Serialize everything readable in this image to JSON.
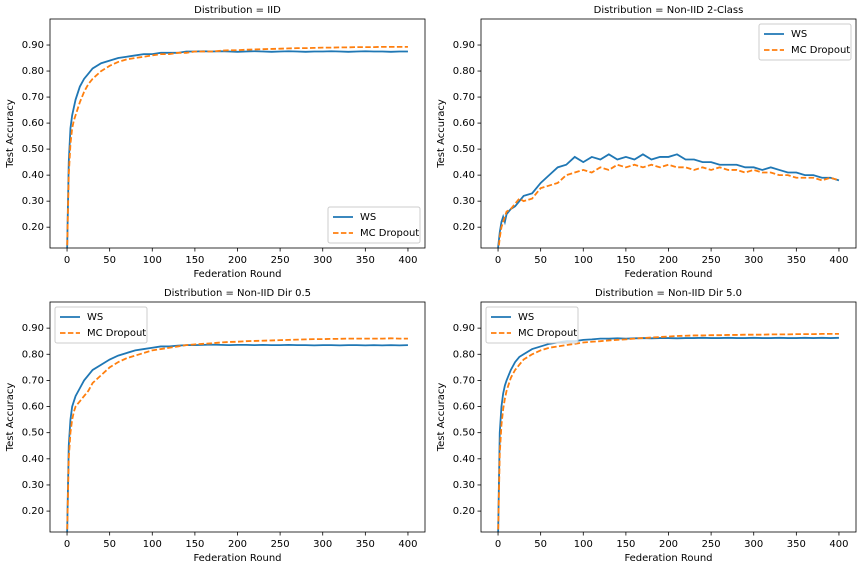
{
  "chart_data": [
    {
      "type": "line",
      "title": "Distribution = IID",
      "xlabel": "Federation Round",
      "ylabel": "Test Accuracy",
      "x": [
        0,
        2,
        4,
        6,
        8,
        10,
        15,
        20,
        25,
        30,
        40,
        50,
        60,
        70,
        80,
        90,
        100,
        110,
        120,
        130,
        140,
        150,
        160,
        170,
        180,
        190,
        200,
        210,
        220,
        230,
        240,
        250,
        260,
        270,
        280,
        290,
        300,
        310,
        320,
        330,
        340,
        350,
        360,
        370,
        380,
        390,
        400
      ],
      "series": [
        {
          "name": "WS",
          "color": "#1f77b4",
          "linestyle": "solid",
          "values": [
            0.1,
            0.45,
            0.58,
            0.63,
            0.66,
            0.69,
            0.74,
            0.77,
            0.79,
            0.81,
            0.83,
            0.84,
            0.85,
            0.855,
            0.86,
            0.865,
            0.865,
            0.87,
            0.87,
            0.87,
            0.875,
            0.875,
            0.876,
            0.875,
            0.876,
            0.875,
            0.874,
            0.875,
            0.876,
            0.875,
            0.874,
            0.875,
            0.876,
            0.875,
            0.874,
            0.875,
            0.875,
            0.876,
            0.875,
            0.874,
            0.875,
            0.876,
            0.875,
            0.875,
            0.874,
            0.875,
            0.875
          ]
        },
        {
          "name": "MC Dropout",
          "color": "#ff7f0e",
          "linestyle": "dashed",
          "values": [
            0.1,
            0.4,
            0.52,
            0.58,
            0.61,
            0.63,
            0.68,
            0.72,
            0.75,
            0.77,
            0.8,
            0.82,
            0.835,
            0.845,
            0.85,
            0.855,
            0.86,
            0.865,
            0.865,
            0.87,
            0.87,
            0.875,
            0.875,
            0.875,
            0.878,
            0.88,
            0.88,
            0.882,
            0.883,
            0.884,
            0.885,
            0.886,
            0.887,
            0.888,
            0.888,
            0.889,
            0.89,
            0.89,
            0.891,
            0.891,
            0.892,
            0.892,
            0.892,
            0.893,
            0.893,
            0.893,
            0.893
          ]
        }
      ],
      "xlim": [
        -20,
        420
      ],
      "xticks": [
        0,
        50,
        100,
        150,
        200,
        250,
        300,
        350,
        400
      ],
      "ylim": [
        0.12,
        1.0
      ],
      "yticks": [
        {
          "value": 0.2,
          "label": "0.20"
        },
        {
          "value": 0.3,
          "label": "0.30"
        },
        {
          "value": 0.4,
          "label": "0.40"
        },
        {
          "value": 0.5,
          "label": "0.50"
        },
        {
          "value": 0.6,
          "label": "0.60"
        },
        {
          "value": 0.7,
          "label": "0.70"
        },
        {
          "value": 0.8,
          "label": "0.80"
        },
        {
          "value": 0.9,
          "label": "0.90"
        }
      ],
      "legend": "lower right",
      "grid": false
    },
    {
      "type": "line",
      "title": "Distribution = Non-IID 2-Class",
      "xlabel": "Federation Round",
      "ylabel": "Test Accuracy",
      "x": [
        0,
        2,
        4,
        6,
        8,
        10,
        15,
        20,
        25,
        30,
        40,
        50,
        60,
        70,
        80,
        90,
        100,
        110,
        120,
        130,
        140,
        150,
        160,
        170,
        180,
        190,
        200,
        210,
        220,
        230,
        240,
        250,
        260,
        270,
        280,
        290,
        300,
        310,
        320,
        330,
        340,
        350,
        360,
        370,
        380,
        390,
        400
      ],
      "series": [
        {
          "name": "WS",
          "color": "#1f77b4",
          "linestyle": "solid",
          "values": [
            0.12,
            0.18,
            0.22,
            0.24,
            0.22,
            0.25,
            0.27,
            0.28,
            0.3,
            0.32,
            0.33,
            0.37,
            0.4,
            0.43,
            0.44,
            0.47,
            0.45,
            0.47,
            0.46,
            0.48,
            0.46,
            0.47,
            0.46,
            0.48,
            0.46,
            0.47,
            0.47,
            0.48,
            0.46,
            0.46,
            0.45,
            0.45,
            0.44,
            0.44,
            0.44,
            0.43,
            0.43,
            0.42,
            0.43,
            0.42,
            0.41,
            0.41,
            0.4,
            0.4,
            0.39,
            0.39,
            0.38
          ]
        },
        {
          "name": "MC Dropout",
          "color": "#ff7f0e",
          "linestyle": "dashed",
          "values": [
            0.1,
            0.16,
            0.2,
            0.22,
            0.24,
            0.26,
            0.27,
            0.29,
            0.31,
            0.3,
            0.31,
            0.35,
            0.36,
            0.37,
            0.4,
            0.41,
            0.42,
            0.41,
            0.43,
            0.42,
            0.44,
            0.43,
            0.44,
            0.43,
            0.44,
            0.43,
            0.44,
            0.43,
            0.43,
            0.42,
            0.43,
            0.42,
            0.43,
            0.42,
            0.42,
            0.41,
            0.42,
            0.41,
            0.41,
            0.4,
            0.4,
            0.39,
            0.39,
            0.39,
            0.38,
            0.39,
            0.38
          ]
        }
      ],
      "xlim": [
        -20,
        420
      ],
      "xticks": [
        0,
        50,
        100,
        150,
        200,
        250,
        300,
        350,
        400
      ],
      "ylim": [
        0.12,
        1.0
      ],
      "yticks": [
        {
          "value": 0.2,
          "label": "0.20"
        },
        {
          "value": 0.3,
          "label": "0.30"
        },
        {
          "value": 0.4,
          "label": "0.40"
        },
        {
          "value": 0.5,
          "label": "0.50"
        },
        {
          "value": 0.6,
          "label": "0.60"
        },
        {
          "value": 0.7,
          "label": "0.70"
        },
        {
          "value": 0.8,
          "label": "0.80"
        },
        {
          "value": 0.9,
          "label": "0.90"
        }
      ],
      "legend": "upper right",
      "grid": false
    },
    {
      "type": "line",
      "title": "Distribution = Non-IID Dir 0.5",
      "xlabel": "Federation Round",
      "ylabel": "Test Accuracy",
      "x": [
        0,
        2,
        4,
        6,
        8,
        10,
        15,
        20,
        25,
        30,
        40,
        50,
        60,
        70,
        80,
        90,
        100,
        110,
        120,
        130,
        140,
        150,
        160,
        170,
        180,
        190,
        200,
        210,
        220,
        230,
        240,
        250,
        260,
        270,
        280,
        290,
        300,
        310,
        320,
        330,
        340,
        350,
        360,
        370,
        380,
        390,
        400
      ],
      "series": [
        {
          "name": "WS",
          "color": "#1f77b4",
          "linestyle": "solid",
          "values": [
            0.1,
            0.45,
            0.55,
            0.6,
            0.62,
            0.64,
            0.67,
            0.7,
            0.72,
            0.74,
            0.76,
            0.78,
            0.795,
            0.805,
            0.815,
            0.82,
            0.825,
            0.83,
            0.83,
            0.833,
            0.835,
            0.835,
            0.836,
            0.837,
            0.836,
            0.835,
            0.836,
            0.836,
            0.835,
            0.836,
            0.835,
            0.835,
            0.836,
            0.835,
            0.835,
            0.834,
            0.835,
            0.835,
            0.834,
            0.835,
            0.835,
            0.834,
            0.835,
            0.834,
            0.835,
            0.834,
            0.835
          ]
        },
        {
          "name": "MC Dropout",
          "color": "#ff7f0e",
          "linestyle": "dashed",
          "values": [
            0.1,
            0.4,
            0.5,
            0.55,
            0.58,
            0.6,
            0.62,
            0.64,
            0.66,
            0.69,
            0.72,
            0.75,
            0.77,
            0.785,
            0.795,
            0.805,
            0.815,
            0.82,
            0.825,
            0.83,
            0.835,
            0.838,
            0.84,
            0.842,
            0.845,
            0.847,
            0.848,
            0.85,
            0.851,
            0.852,
            0.853,
            0.854,
            0.855,
            0.856,
            0.857,
            0.858,
            0.858,
            0.859,
            0.859,
            0.86,
            0.86,
            0.86,
            0.86,
            0.86,
            0.861,
            0.86,
            0.86
          ]
        }
      ],
      "xlim": [
        -20,
        420
      ],
      "xticks": [
        0,
        50,
        100,
        150,
        200,
        250,
        300,
        350,
        400
      ],
      "ylim": [
        0.12,
        1.0
      ],
      "yticks": [
        {
          "value": 0.2,
          "label": "0.20"
        },
        {
          "value": 0.3,
          "label": "0.30"
        },
        {
          "value": 0.4,
          "label": "0.40"
        },
        {
          "value": 0.5,
          "label": "0.50"
        },
        {
          "value": 0.6,
          "label": "0.60"
        },
        {
          "value": 0.7,
          "label": "0.70"
        },
        {
          "value": 0.8,
          "label": "0.80"
        },
        {
          "value": 0.9,
          "label": "0.90"
        }
      ],
      "legend": "upper left",
      "grid": false
    },
    {
      "type": "line",
      "title": "Distribution = Non-IID Dir 5.0",
      "xlabel": "Federation Round",
      "ylabel": "Test Accuracy",
      "x": [
        0,
        2,
        4,
        6,
        8,
        10,
        15,
        20,
        25,
        30,
        40,
        50,
        60,
        70,
        80,
        90,
        100,
        110,
        120,
        130,
        140,
        150,
        160,
        170,
        180,
        190,
        200,
        210,
        220,
        230,
        240,
        250,
        260,
        270,
        280,
        290,
        300,
        310,
        320,
        330,
        340,
        350,
        360,
        370,
        380,
        390,
        400
      ],
      "series": [
        {
          "name": "WS",
          "color": "#1f77b4",
          "linestyle": "solid",
          "values": [
            0.1,
            0.5,
            0.6,
            0.65,
            0.68,
            0.7,
            0.74,
            0.77,
            0.79,
            0.8,
            0.82,
            0.83,
            0.84,
            0.845,
            0.85,
            0.85,
            0.855,
            0.857,
            0.86,
            0.86,
            0.861,
            0.86,
            0.861,
            0.862,
            0.861,
            0.862,
            0.862,
            0.861,
            0.862,
            0.862,
            0.863,
            0.862,
            0.862,
            0.863,
            0.862,
            0.862,
            0.863,
            0.862,
            0.862,
            0.863,
            0.862,
            0.862,
            0.863,
            0.862,
            0.863,
            0.862,
            0.863
          ]
        },
        {
          "name": "MC Dropout",
          "color": "#ff7f0e",
          "linestyle": "dashed",
          "values": [
            0.1,
            0.42,
            0.53,
            0.59,
            0.63,
            0.66,
            0.71,
            0.74,
            0.76,
            0.78,
            0.8,
            0.815,
            0.825,
            0.83,
            0.835,
            0.84,
            0.845,
            0.848,
            0.85,
            0.853,
            0.855,
            0.857,
            0.86,
            0.862,
            0.864,
            0.866,
            0.868,
            0.87,
            0.871,
            0.872,
            0.872,
            0.873,
            0.873,
            0.874,
            0.874,
            0.875,
            0.875,
            0.875,
            0.876,
            0.876,
            0.876,
            0.877,
            0.877,
            0.877,
            0.878,
            0.878,
            0.878
          ]
        }
      ],
      "xlim": [
        -20,
        420
      ],
      "xticks": [
        0,
        50,
        100,
        150,
        200,
        250,
        300,
        350,
        400
      ],
      "ylim": [
        0.12,
        1.0
      ],
      "yticks": [
        {
          "value": 0.2,
          "label": "0.20"
        },
        {
          "value": 0.3,
          "label": "0.30"
        },
        {
          "value": 0.4,
          "label": "0.40"
        },
        {
          "value": 0.5,
          "label": "0.50"
        },
        {
          "value": 0.6,
          "label": "0.60"
        },
        {
          "value": 0.7,
          "label": "0.70"
        },
        {
          "value": 0.8,
          "label": "0.80"
        },
        {
          "value": 0.9,
          "label": "0.90"
        }
      ],
      "legend": "upper left",
      "grid": false
    }
  ]
}
